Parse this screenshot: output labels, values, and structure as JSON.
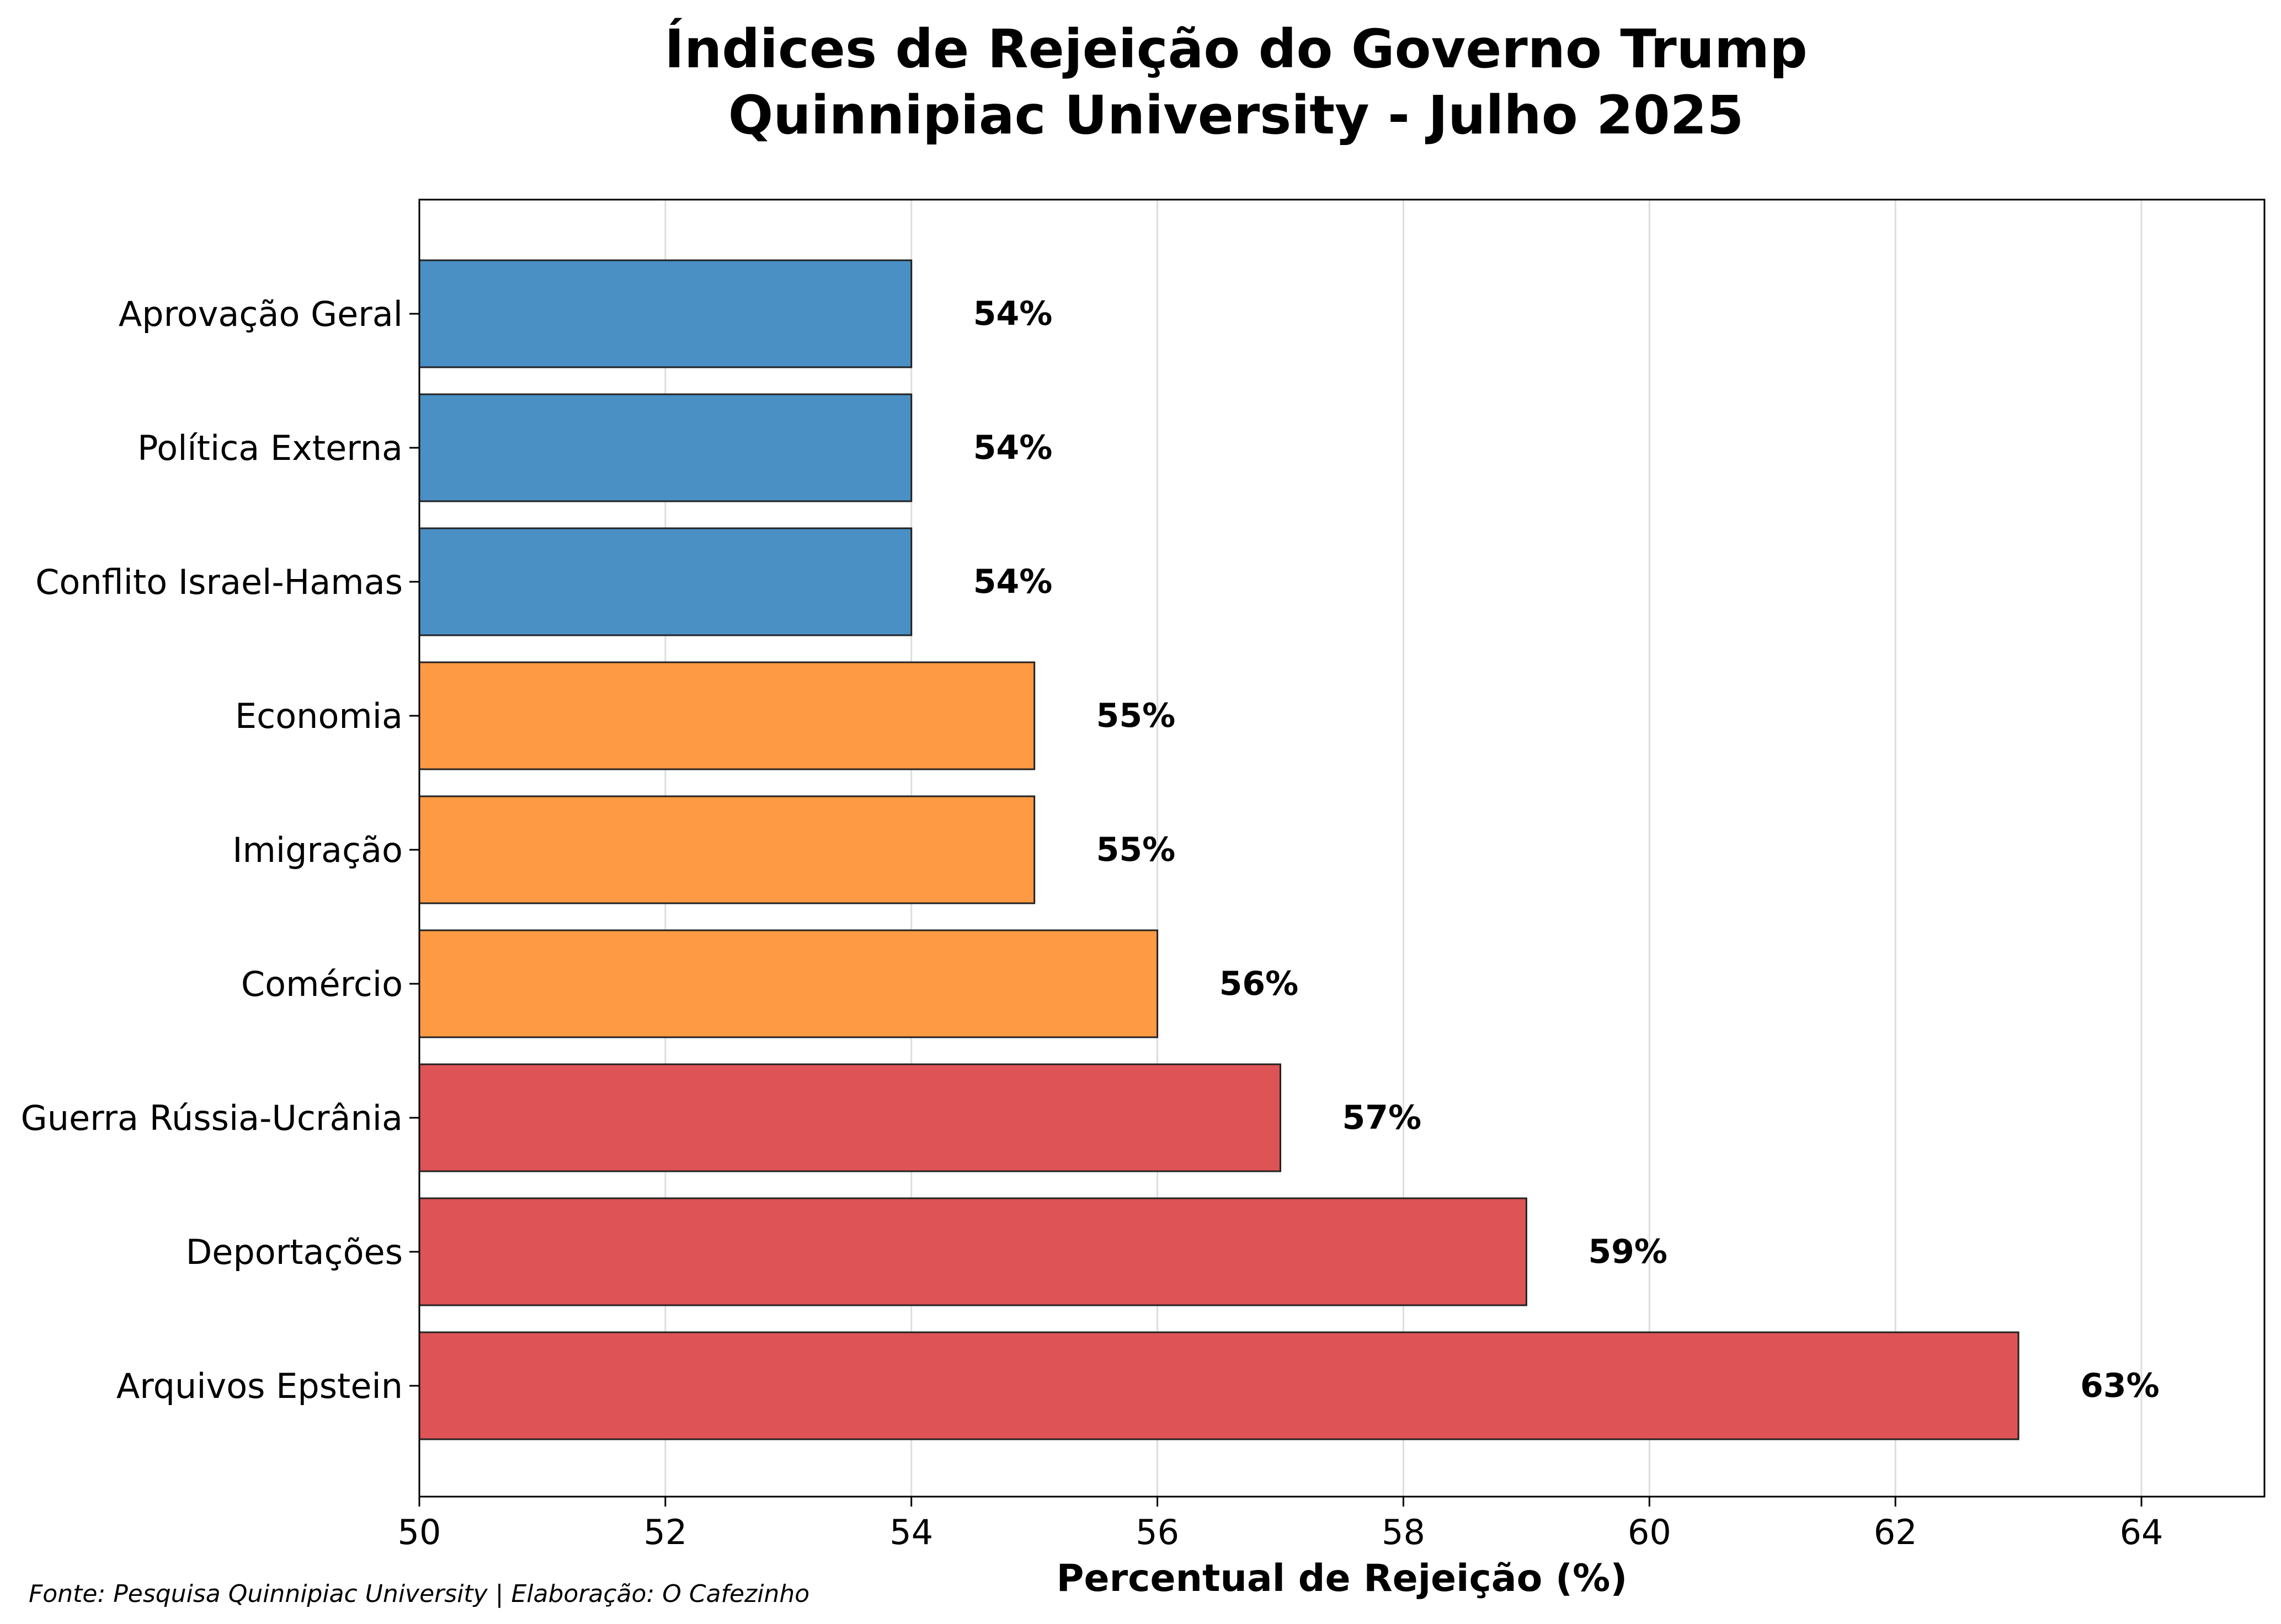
{
  "chart_data": {
    "type": "bar",
    "orientation": "horizontal",
    "title": [
      "Índices de Rejeição do Governo Trump",
      "Quinnipiac University - Julho 2025"
    ],
    "xlabel": "Percentual de Rejeição (%)",
    "ylabel": "",
    "xlim": [
      50,
      65
    ],
    "xticks": [
      50,
      52,
      54,
      56,
      58,
      60,
      62,
      64
    ],
    "grid": "x",
    "source": "Fonte: Pesquisa Quinnipiac University | Elaboração: O Cafezinho",
    "categories": [
      "Aprovação Geral",
      "Política Externa",
      "Conflito Israel-Hamas",
      "Economia",
      "Imigração",
      "Comércio",
      "Guerra Rússia-Ucrânia",
      "Deportações",
      "Arquivos Epstein"
    ],
    "values": [
      54,
      54,
      54,
      55,
      55,
      56,
      57,
      59,
      63
    ],
    "value_labels": [
      "54%",
      "54%",
      "54%",
      "55%",
      "55%",
      "56%",
      "57%",
      "59%",
      "63%"
    ],
    "bar_colors": [
      "#4a90c4",
      "#4a90c4",
      "#4a90c4",
      "#fd9a43",
      "#fd9a43",
      "#fd9a43",
      "#de5355",
      "#de5355",
      "#de5355"
    ]
  }
}
